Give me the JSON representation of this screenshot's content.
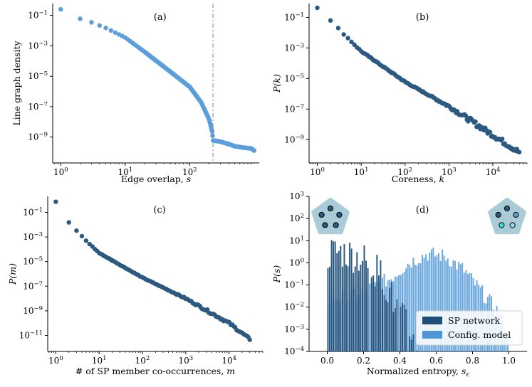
{
  "colors": {
    "light": "#5a9fdc",
    "dark": "#2c5980",
    "hist_dark": "#1f4e79",
    "hist_light": "#4d97d9",
    "pentagon": "#a9ccd6",
    "node_fill": "#2c5980",
    "vline": "#888888"
  },
  "chart_data": [
    {
      "id": "a",
      "type": "scatter",
      "panel_label": "(a)",
      "xlabel": "Edge overlap, s",
      "ylabel": "Line graph density",
      "xscale": "log",
      "yscale": "log",
      "xlim": [
        0.75,
        1200
      ],
      "ylim": [
        2e-11,
        0.6
      ],
      "xticks": [
        {
          "v": 1,
          "label": "10^0"
        },
        {
          "v": 10,
          "label": "10^1"
        },
        {
          "v": 100,
          "label": "10^2"
        }
      ],
      "yticks": [
        {
          "v": 0.1,
          "label": "10^-1"
        },
        {
          "v": 0.001,
          "label": "10^-3"
        },
        {
          "v": 1e-05,
          "label": "10^-5"
        },
        {
          "v": 1e-07,
          "label": "10^-7"
        },
        {
          "v": 1e-09,
          "label": "10^-9"
        }
      ],
      "vline": 230,
      "color": "light",
      "curve": [
        [
          1,
          0.25
        ],
        [
          2,
          0.06
        ],
        [
          3,
          0.035
        ],
        [
          5,
          0.015
        ],
        [
          10,
          0.0035
        ],
        [
          20,
          0.0004
        ],
        [
          50,
          2e-05
        ],
        [
          100,
          2e-06
        ],
        [
          150,
          2e-07
        ],
        [
          200,
          1.5e-08
        ],
        [
          225,
          2e-09
        ],
        [
          230,
          6e-10
        ],
        [
          300,
          5e-10
        ],
        [
          400,
          3.5e-10
        ],
        [
          500,
          2.5e-10
        ],
        [
          700,
          2e-10
        ],
        [
          900,
          1.8e-10
        ],
        [
          1000,
          1.3e-10
        ]
      ],
      "n_points": 220,
      "noise": 0.0
    },
    {
      "id": "b",
      "type": "scatter",
      "panel_label": "(b)",
      "xlabel": "Coreness, k",
      "ylabel": "P(k)",
      "xscale": "log",
      "yscale": "log",
      "xlim": [
        0.65,
        60000
      ],
      "ylim": [
        3e-11,
        0.8
      ],
      "xticks": [
        {
          "v": 1,
          "label": "10^0"
        },
        {
          "v": 10,
          "label": "10^1"
        },
        {
          "v": 100,
          "label": "10^2"
        },
        {
          "v": 1000,
          "label": "10^3"
        },
        {
          "v": 10000,
          "label": "10^4"
        }
      ],
      "yticks": [
        {
          "v": 0.1,
          "label": "10^-1"
        },
        {
          "v": 0.001,
          "label": "10^-3"
        },
        {
          "v": 1e-05,
          "label": "10^-5"
        },
        {
          "v": 1e-07,
          "label": "10^-7"
        },
        {
          "v": 1e-09,
          "label": "10^-9"
        }
      ],
      "color": "dark",
      "curve": [
        [
          1,
          0.45
        ],
        [
          1.5,
          0.12
        ],
        [
          2,
          0.06
        ],
        [
          10,
          0.0006
        ],
        [
          100,
          6e-06
        ],
        [
          1000,
          1.5e-07
        ],
        [
          10000,
          2e-09
        ],
        [
          40000,
          1.5e-10
        ]
      ],
      "n_points": 120,
      "noise": 0.25
    },
    {
      "id": "c",
      "type": "scatter",
      "panel_label": "(c)",
      "xlabel": "# of SP member co-occurrences, m",
      "ylabel": "P(m)",
      "xscale": "log",
      "yscale": "log",
      "xlim": [
        0.65,
        60000
      ],
      "ylim": [
        5e-13,
        2
      ],
      "xticks": [
        {
          "v": 1,
          "label": "10^0"
        },
        {
          "v": 10,
          "label": "10^1"
        },
        {
          "v": 100,
          "label": "10^2"
        },
        {
          "v": 1000,
          "label": "10^3"
        },
        {
          "v": 10000,
          "label": "10^4"
        }
      ],
      "yticks": [
        {
          "v": 0.1,
          "label": "10^-1"
        },
        {
          "v": 0.001,
          "label": "10^-3"
        },
        {
          "v": 1e-05,
          "label": "10^-5"
        },
        {
          "v": 1e-07,
          "label": "10^-7"
        },
        {
          "v": 1e-09,
          "label": "10^-9"
        },
        {
          "v": 1e-11,
          "label": "10^-11"
        }
      ],
      "color": "dark",
      "curve": [
        [
          1,
          0.7
        ],
        [
          1.5,
          0.05
        ],
        [
          2,
          0.015
        ],
        [
          5,
          0.0005
        ],
        [
          10,
          5e-05
        ],
        [
          100,
          5e-07
        ],
        [
          1000,
          1e-08
        ],
        [
          10000,
          1e-10
        ],
        [
          30000,
          5e-12
        ]
      ],
      "n_points": 95,
      "noise": 0.15
    },
    {
      "id": "d",
      "type": "bar",
      "panel_label": "(d)",
      "xlabel": "Normalized entropy, s_ε",
      "ylabel": "P(s)",
      "xscale": "linear",
      "yscale": "log",
      "xlim": [
        -0.1,
        1.1
      ],
      "ylim": [
        0.0001,
        1000
      ],
      "xticks": [
        {
          "v": 0.0,
          "label": "0.0"
        },
        {
          "v": 0.2,
          "label": "0.2"
        },
        {
          "v": 0.4,
          "label": "0.4"
        },
        {
          "v": 0.6,
          "label": "0.6"
        },
        {
          "v": 0.8,
          "label": "0.8"
        },
        {
          "v": 1.0,
          "label": "1.0"
        }
      ],
      "yticks": [
        {
          "v": 1000,
          "label": "10^3"
        },
        {
          "v": 100,
          "label": "10^2"
        },
        {
          "v": 10,
          "label": "10^1"
        },
        {
          "v": 1,
          "label": "10^0"
        },
        {
          "v": 0.1,
          "label": "10^-1"
        },
        {
          "v": 0.01,
          "label": "10^-2"
        },
        {
          "v": 0.001,
          "label": "10^-3"
        },
        {
          "v": 0.0001,
          "label": "10^-4"
        }
      ],
      "bins": 100,
      "series": [
        {
          "name": "SP network",
          "color": "hist_dark",
          "shape": [
            [
              0.0,
              2
            ],
            [
              0.02,
              3
            ],
            [
              0.1,
              3
            ],
            [
              0.2,
              1.5
            ],
            [
              0.3,
              0.3
            ],
            [
              0.38,
              0.01
            ],
            [
              0.45,
              0.001
            ],
            [
              0.5,
              0.0002
            ]
          ]
        },
        {
          "name": "Config. model",
          "color": "hist_light",
          "shape": [
            [
              0.0,
              0.02
            ],
            [
              0.2,
              0.05
            ],
            [
              0.35,
              0.2
            ],
            [
              0.45,
              1.0
            ],
            [
              0.55,
              2.5
            ],
            [
              0.65,
              2.0
            ],
            [
              0.75,
              0.5
            ],
            [
              0.85,
              0.05
            ],
            [
              0.95,
              0.005
            ],
            [
              1.0,
              0.0003
            ]
          ]
        }
      ],
      "legend": [
        "SP network",
        "Config. model"
      ]
    }
  ]
}
